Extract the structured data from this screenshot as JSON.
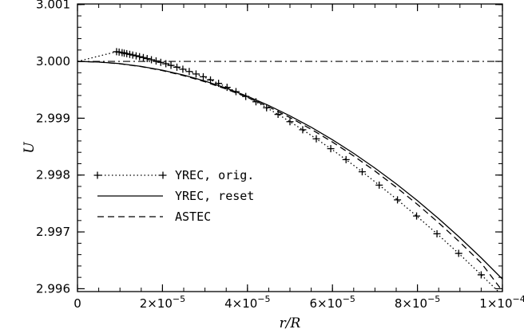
{
  "chart_data": {
    "type": "line",
    "xlabel": "r/R",
    "ylabel": "U",
    "xlim": [
      0,
      0.0001
    ],
    "ylim": [
      2.99595,
      3.00101
    ],
    "x_ticks": [
      0,
      2e-05,
      4e-05,
      6e-05,
      8e-05,
      0.0001
    ],
    "x_tick_labels": [
      {
        "mantissa": "0",
        "base": "",
        "exp": ""
      },
      {
        "mantissa": "2",
        "base": "×10",
        "exp": "−5"
      },
      {
        "mantissa": "4",
        "base": "×10",
        "exp": "−5"
      },
      {
        "mantissa": "6",
        "base": "×10",
        "exp": "−5"
      },
      {
        "mantissa": "8",
        "base": "×10",
        "exp": "−5"
      },
      {
        "mantissa": "1",
        "base": "×10",
        "exp": "−4"
      }
    ],
    "y_ticks": [
      2.996,
      2.997,
      2.998,
      2.999,
      3.0,
      3.001
    ],
    "y_tick_labels": [
      "2.996",
      "2.997",
      "2.998",
      "2.999",
      "3.000",
      "3.001"
    ],
    "reference_line": {
      "y": 3.0,
      "style": "dash-dot"
    },
    "legend_position": "left-middle",
    "series": [
      {
        "name": "YREC, orig.",
        "style": "dotted",
        "marker": "plus",
        "x": [
          0,
          9.2e-06,
          9.8e-06,
          1.05e-05,
          1.1e-05,
          1.16e-05,
          1.23e-05,
          1.3e-05,
          1.38e-05,
          1.46e-05,
          1.55e-05,
          1.64e-05,
          1.74e-05,
          1.85e-05,
          1.96e-05,
          2.08e-05,
          2.2e-05,
          2.34e-05,
          2.48e-05,
          2.63e-05,
          2.79e-05,
          2.96e-05,
          3.13e-05,
          3.32e-05,
          3.52e-05,
          3.73e-05,
          3.96e-05,
          4.2e-05,
          4.45e-05,
          4.72e-05,
          5e-05,
          5.3e-05,
          5.62e-05,
          5.96e-05,
          6.32e-05,
          6.7e-05,
          7.1e-05,
          7.53e-05,
          7.98e-05,
          8.46e-05,
          8.97e-05,
          9.5e-05,
          0.0001
        ],
        "y": [
          3.0,
          3.00017,
          3.000163,
          3.000154,
          3.000145,
          3.000135,
          3.000124,
          3.000112,
          3.000098,
          3.000083,
          3.000067,
          3.000049,
          3.000029,
          3.000007,
          2.999983,
          2.999958,
          2.99993,
          2.999898,
          2.999862,
          2.999822,
          2.999778,
          2.999729,
          2.999674,
          2.999613,
          2.999544,
          2.999468,
          2.999383,
          2.999289,
          2.999184,
          2.999068,
          2.998939,
          2.998797,
          2.998638,
          2.998464,
          2.998271,
          2.998058,
          2.997823,
          2.997564,
          2.99728,
          2.996967,
          2.996622,
          2.996245,
          2.99588
        ]
      },
      {
        "name": "YREC, reset",
        "style": "solid",
        "x": [
          0,
          5e-06,
          1e-05,
          1.5e-05,
          2e-05,
          2.5e-05,
          3e-05,
          3.5e-05,
          4e-05,
          4.5e-05,
          5e-05,
          5.5e-05,
          6e-05,
          6.5e-05,
          7e-05,
          7.5e-05,
          8e-05,
          8.5e-05,
          9e-05,
          9.5e-05,
          0.0001
        ],
        "y": [
          3.0,
          2.999989,
          2.99996,
          2.999912,
          2.999845,
          2.999759,
          2.999654,
          2.99953,
          2.999387,
          2.999224,
          2.999042,
          2.998841,
          2.998621,
          2.998382,
          2.998123,
          2.997846,
          2.997549,
          2.997233,
          2.996898,
          2.996544,
          2.99617
        ]
      },
      {
        "name": "ASTEC",
        "style": "dashed",
        "x": [
          0,
          5e-06,
          1e-05,
          1.5e-05,
          2e-05,
          2.5e-05,
          3e-05,
          3.5e-05,
          4e-05,
          4.5e-05,
          5e-05,
          5.5e-05,
          6e-05,
          6.5e-05,
          7e-05,
          7.5e-05,
          8e-05,
          8.5e-05,
          9e-05,
          9.5e-05,
          0.0001
        ],
        "y": [
          3.0,
          2.999988,
          2.999958,
          2.999908,
          2.999838,
          2.999749,
          2.999641,
          2.999513,
          2.999366,
          2.999199,
          2.999012,
          2.998806,
          2.998581,
          2.998336,
          2.998071,
          2.997787,
          2.997483,
          2.99716,
          2.996817,
          2.996454,
          2.99596
        ]
      }
    ]
  }
}
